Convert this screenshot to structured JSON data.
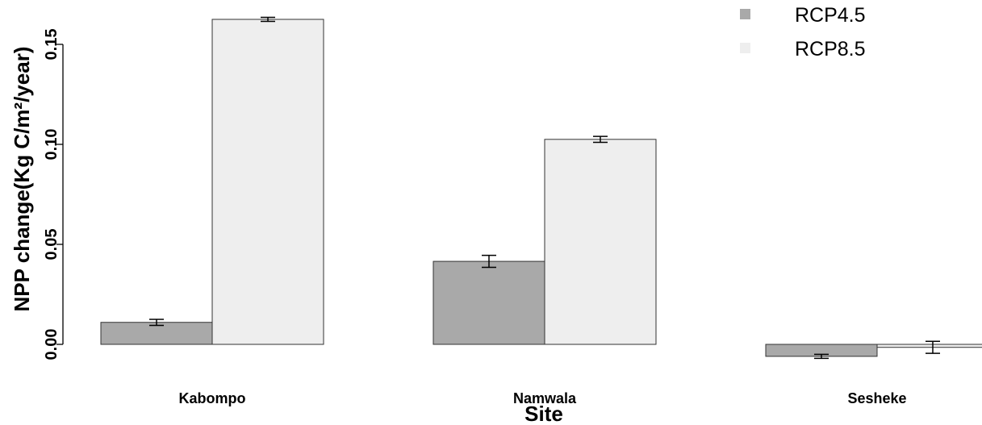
{
  "chart_data": {
    "type": "bar",
    "xlabel": "Site",
    "ylabel": "NPP change(Kg C/m²/year)",
    "categories": [
      "Kabompo",
      "Namwala",
      "Sesheke"
    ],
    "series": [
      {
        "name": "RCP4.5",
        "color": "#a9a9a9",
        "values": [
          0.011,
          0.0415,
          -0.006
        ],
        "errors": [
          0.0015,
          0.003,
          0.001
        ]
      },
      {
        "name": "RCP8.5",
        "color": "#eeeeee",
        "values": [
          0.1625,
          0.1025,
          -0.0015
        ],
        "errors": [
          0.001,
          0.0015,
          0.003
        ]
      }
    ],
    "ylim": [
      -0.01,
      0.16
    ],
    "yticks": [
      0.0,
      0.05,
      0.1,
      0.15
    ],
    "ytick_labels": [
      "0.00",
      "0.05",
      "0.10",
      "0.15"
    ],
    "grid": false,
    "legend_position": "top-right"
  }
}
